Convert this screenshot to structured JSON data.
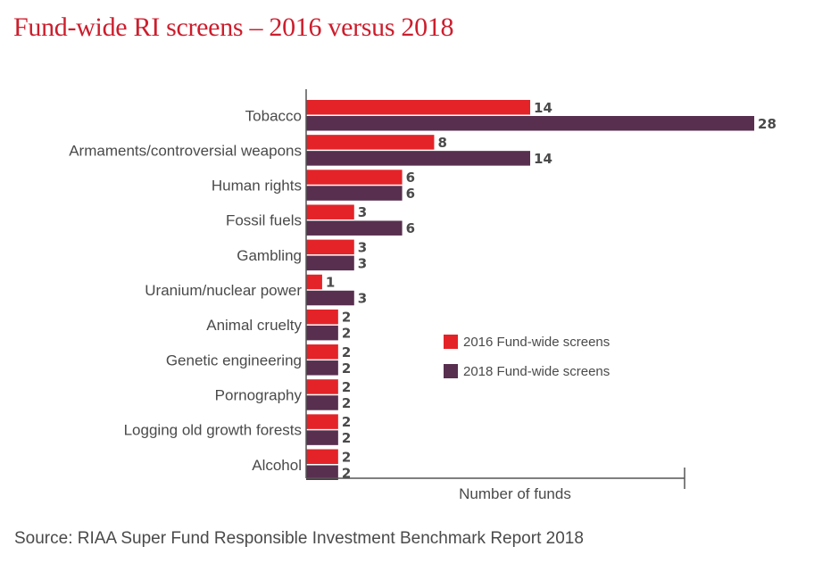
{
  "title": "Fund-wide RI screens – 2016 versus 2018",
  "source": "Source: RIAA Super Fund Responsible Investment Benchmark Report 2018",
  "chart_data": {
    "type": "bar",
    "orientation": "horizontal",
    "categories": [
      "Tobacco",
      "Armaments/controversial weapons",
      "Human rights",
      "Fossil fuels",
      "Gambling",
      "Uranium/nuclear power",
      "Animal cruelty",
      "Genetic engineering",
      "Pornography",
      "Logging old growth forests",
      "Alcohol"
    ],
    "series": [
      {
        "name": "2016 Fund-wide screens",
        "color": "#e42328",
        "values": [
          14,
          8,
          6,
          3,
          3,
          1,
          2,
          2,
          2,
          2,
          2
        ]
      },
      {
        "name": "2018 Fund-wide screens",
        "color": "#582f4f",
        "values": [
          28,
          14,
          6,
          6,
          3,
          3,
          2,
          2,
          2,
          2,
          2
        ]
      }
    ],
    "xlabel": "Number of funds",
    "xlim": [
      0,
      28
    ],
    "legend_position": "center-right",
    "grid": false
  }
}
